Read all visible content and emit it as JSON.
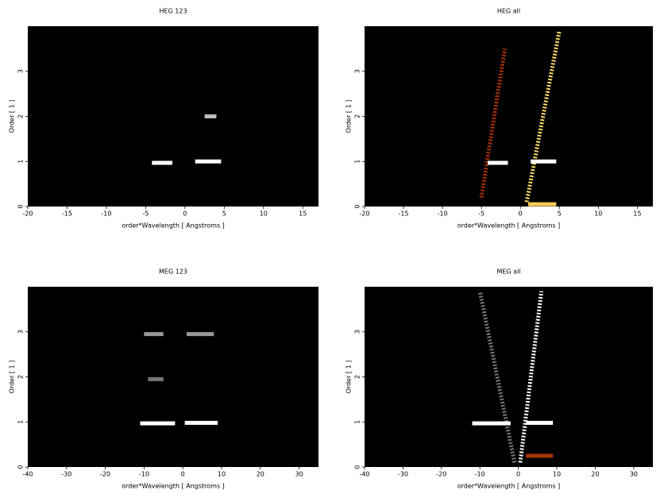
{
  "chart_data": [
    {
      "type": "heatmap",
      "title": "HEG 123",
      "xlabel": "order*Wavelength [ Angstroms ]",
      "ylabel": "Order [ 1 ]",
      "xlim": [
        -20,
        17
      ],
      "ylim": [
        0,
        4
      ],
      "xticks": [
        -20,
        -15,
        -10,
        -5,
        0,
        5,
        10,
        15
      ],
      "yticks": [
        0,
        1,
        2,
        3
      ],
      "background": "#000000",
      "segments": [
        {
          "x": [
            -4.2,
            -1.6
          ],
          "y": [
            0.97,
            0.97
          ],
          "color": "#ffffff"
        },
        {
          "x": [
            1.3,
            4.6
          ],
          "y": [
            1.0,
            1.0
          ],
          "color": "#ffffff"
        },
        {
          "x": [
            2.5,
            4.0
          ],
          "y": [
            2.0,
            2.0
          ],
          "color": "#bbbbbb"
        }
      ]
    },
    {
      "type": "heatmap",
      "title": "HEG all",
      "xlabel": "order*Wavelength [ Angstroms ]",
      "ylabel": "Order [ 1 ]",
      "xlim": [
        -20,
        17
      ],
      "ylim": [
        0,
        4
      ],
      "xticks": [
        -20,
        -15,
        -10,
        -5,
        0,
        5,
        10,
        15
      ],
      "yticks": [
        0,
        1,
        2,
        3
      ],
      "background": "#000000",
      "segments": [
        {
          "x": [
            0.8,
            5.0
          ],
          "y": [
            0.1,
            3.9
          ],
          "color": "#ffdd66"
        },
        {
          "x": [
            -5.0,
            -2.0
          ],
          "y": [
            0.2,
            3.5
          ],
          "color": "#aa3300"
        },
        {
          "x": [
            1.0,
            4.6
          ],
          "y": [
            0.05,
            0.05
          ],
          "color": "#ffcc55"
        },
        {
          "x": [
            -4.2,
            -1.6
          ],
          "y": [
            0.97,
            0.97
          ],
          "color": "#ffffff"
        },
        {
          "x": [
            1.3,
            4.6
          ],
          "y": [
            1.0,
            1.0
          ],
          "color": "#ffffff"
        }
      ]
    },
    {
      "type": "heatmap",
      "title": "MEG 123",
      "xlabel": "order*Wavelength [ Angstroms ]",
      "ylabel": "Order [ 1 ]",
      "xlim": [
        -40,
        35
      ],
      "ylim": [
        0,
        4
      ],
      "xticks": [
        -40,
        -30,
        -20,
        -10,
        0,
        10,
        20,
        30
      ],
      "yticks": [
        0,
        1,
        2,
        3
      ],
      "background": "#000000",
      "segments": [
        {
          "x": [
            -11,
            -2
          ],
          "y": [
            0.97,
            0.97
          ],
          "color": "#ffffff"
        },
        {
          "x": [
            0.5,
            9
          ],
          "y": [
            0.98,
            0.98
          ],
          "color": "#ffffff"
        },
        {
          "x": [
            -10,
            -5
          ],
          "y": [
            2.95,
            2.95
          ],
          "color": "#999999"
        },
        {
          "x": [
            1,
            8
          ],
          "y": [
            2.95,
            2.95
          ],
          "color": "#999999"
        },
        {
          "x": [
            -9,
            -5
          ],
          "y": [
            1.95,
            1.95
          ],
          "color": "#777777"
        }
      ]
    },
    {
      "type": "heatmap",
      "title": "MEG all",
      "xlabel": "order*Wavelength [ Angstroms ]",
      "ylabel": "Order [ 1 ]",
      "xlim": [
        -40,
        35
      ],
      "ylim": [
        0,
        4
      ],
      "xticks": [
        -40,
        -30,
        -20,
        -10,
        0,
        10,
        20,
        30
      ],
      "yticks": [
        0,
        1,
        2,
        3
      ],
      "background": "#000000",
      "segments": [
        {
          "x": [
            0.5,
            6
          ],
          "y": [
            0.1,
            3.9
          ],
          "color": "#ffffff"
        },
        {
          "x": [
            -1,
            -10
          ],
          "y": [
            0.1,
            3.9
          ],
          "color": "#777777"
        },
        {
          "x": [
            2,
            9
          ],
          "y": [
            0.25,
            0.25
          ],
          "color": "#aa3300"
        },
        {
          "x": [
            -12,
            -2
          ],
          "y": [
            0.97,
            0.97
          ],
          "color": "#ffffff"
        },
        {
          "x": [
            2,
            9
          ],
          "y": [
            0.98,
            0.98
          ],
          "color": "#ffffff"
        }
      ]
    }
  ]
}
